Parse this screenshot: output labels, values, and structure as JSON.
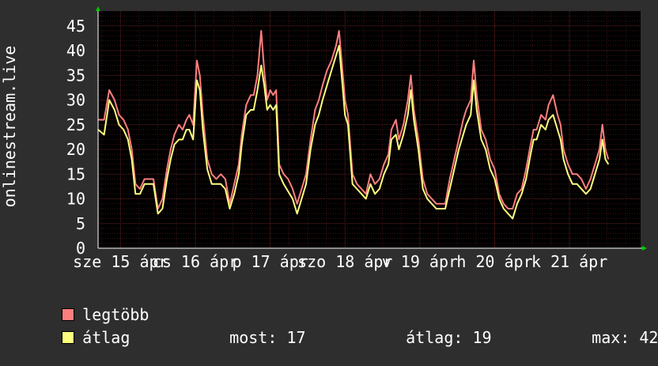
{
  "chart_data": {
    "type": "line",
    "ylabel": "onlinestream.live",
    "ylim": [
      0,
      48
    ],
    "y_ticks": [
      "0",
      "5",
      "10",
      "15",
      "20",
      "25",
      "30",
      "35",
      "40",
      "45"
    ],
    "x_ticks": [
      {
        "label": "sze 15 ápr",
        "x": 0.0
      },
      {
        "label": "cs 16 ápr",
        "x": 1.0
      },
      {
        "label": "p 17 ápr",
        "x": 2.0
      },
      {
        "label": "szo 18 ápr",
        "x": 3.0
      },
      {
        "label": "v 19 ápr",
        "x": 4.0
      },
      {
        "label": "h 20 ápr",
        "x": 5.0
      },
      {
        "label": "k 21 ápr",
        "x": 6.0
      }
    ],
    "grid": true,
    "x_range": [
      -0.3,
      6.95
    ],
    "colors": {
      "max": "#ff7f7f",
      "avg": "#ffff7f",
      "background": "#2e2e2e",
      "plot": "#000000",
      "grid": "#6b2323"
    },
    "series": [
      {
        "name": "legtöbb",
        "color": "#ff7f7f",
        "points": [
          [
            -0.3,
            26
          ],
          [
            -0.22,
            26
          ],
          [
            -0.15,
            32
          ],
          [
            -0.08,
            30
          ],
          [
            -0.02,
            27
          ],
          [
            0.04,
            26
          ],
          [
            0.1,
            24
          ],
          [
            0.15,
            20
          ],
          [
            0.2,
            13
          ],
          [
            0.26,
            12
          ],
          [
            0.32,
            14
          ],
          [
            0.38,
            14
          ],
          [
            0.44,
            14
          ],
          [
            0.5,
            8
          ],
          [
            0.56,
            10
          ],
          [
            0.62,
            16
          ],
          [
            0.67,
            20
          ],
          [
            0.72,
            23
          ],
          [
            0.78,
            25
          ],
          [
            0.83,
            24
          ],
          [
            0.88,
            26
          ],
          [
            0.92,
            27
          ],
          [
            0.97,
            25
          ],
          [
            1.02,
            38
          ],
          [
            1.06,
            35
          ],
          [
            1.1,
            27
          ],
          [
            1.16,
            18
          ],
          [
            1.22,
            15
          ],
          [
            1.28,
            14
          ],
          [
            1.34,
            15
          ],
          [
            1.4,
            14
          ],
          [
            1.46,
            9
          ],
          [
            1.52,
            13
          ],
          [
            1.58,
            17
          ],
          [
            1.62,
            23
          ],
          [
            1.68,
            29
          ],
          [
            1.74,
            31
          ],
          [
            1.78,
            31
          ],
          [
            1.83,
            35
          ],
          [
            1.88,
            44
          ],
          [
            1.92,
            36
          ],
          [
            1.96,
            30
          ],
          [
            2.0,
            32
          ],
          [
            2.04,
            31
          ],
          [
            2.08,
            32
          ],
          [
            2.12,
            17
          ],
          [
            2.18,
            15
          ],
          [
            2.24,
            14
          ],
          [
            2.3,
            12
          ],
          [
            2.36,
            9
          ],
          [
            2.42,
            12
          ],
          [
            2.48,
            15
          ],
          [
            2.54,
            22
          ],
          [
            2.6,
            28
          ],
          [
            2.65,
            30
          ],
          [
            2.7,
            33
          ],
          [
            2.76,
            36
          ],
          [
            2.82,
            38
          ],
          [
            2.88,
            41
          ],
          [
            2.92,
            44
          ],
          [
            2.96,
            37
          ],
          [
            3.0,
            30
          ],
          [
            3.04,
            27
          ],
          [
            3.1,
            15
          ],
          [
            3.16,
            13
          ],
          [
            3.22,
            12
          ],
          [
            3.28,
            11
          ],
          [
            3.34,
            15
          ],
          [
            3.4,
            13
          ],
          [
            3.46,
            14
          ],
          [
            3.52,
            17
          ],
          [
            3.58,
            19
          ],
          [
            3.62,
            24
          ],
          [
            3.68,
            26
          ],
          [
            3.72,
            22
          ],
          [
            3.78,
            25
          ],
          [
            3.84,
            30
          ],
          [
            3.88,
            35
          ],
          [
            3.92,
            28
          ],
          [
            3.98,
            22
          ],
          [
            4.04,
            14
          ],
          [
            4.1,
            11
          ],
          [
            4.16,
            10
          ],
          [
            4.22,
            9
          ],
          [
            4.28,
            9
          ],
          [
            4.34,
            9
          ],
          [
            4.4,
            14
          ],
          [
            4.46,
            18
          ],
          [
            4.52,
            22
          ],
          [
            4.58,
            26
          ],
          [
            4.62,
            28
          ],
          [
            4.68,
            30
          ],
          [
            4.72,
            38
          ],
          [
            4.76,
            31
          ],
          [
            4.82,
            24
          ],
          [
            4.88,
            22
          ],
          [
            4.94,
            18
          ],
          [
            5.0,
            16
          ],
          [
            5.06,
            11
          ],
          [
            5.12,
            9
          ],
          [
            5.18,
            8
          ],
          [
            5.24,
            8
          ],
          [
            5.3,
            11
          ],
          [
            5.36,
            12
          ],
          [
            5.42,
            16
          ],
          [
            5.48,
            21
          ],
          [
            5.52,
            24
          ],
          [
            5.56,
            24
          ],
          [
            5.62,
            27
          ],
          [
            5.68,
            26
          ],
          [
            5.72,
            29
          ],
          [
            5.78,
            31
          ],
          [
            5.84,
            27
          ],
          [
            5.88,
            25
          ],
          [
            5.92,
            20
          ],
          [
            5.98,
            17
          ],
          [
            6.04,
            15
          ],
          [
            6.1,
            15
          ],
          [
            6.16,
            14
          ],
          [
            6.22,
            12
          ],
          [
            6.28,
            14
          ],
          [
            6.34,
            17
          ],
          [
            6.4,
            20
          ],
          [
            6.44,
            25
          ],
          [
            6.48,
            20
          ],
          [
            6.52,
            18
          ]
        ]
      },
      {
        "name": "átlag",
        "color": "#ffff7f",
        "points": [
          [
            -0.3,
            24
          ],
          [
            -0.22,
            23
          ],
          [
            -0.15,
            30
          ],
          [
            -0.08,
            28
          ],
          [
            -0.02,
            25
          ],
          [
            0.04,
            24
          ],
          [
            0.1,
            22
          ],
          [
            0.15,
            18
          ],
          [
            0.2,
            11
          ],
          [
            0.26,
            11
          ],
          [
            0.32,
            13
          ],
          [
            0.38,
            13
          ],
          [
            0.44,
            13
          ],
          [
            0.5,
            7
          ],
          [
            0.56,
            8
          ],
          [
            0.62,
            14
          ],
          [
            0.67,
            18
          ],
          [
            0.72,
            21
          ],
          [
            0.78,
            22
          ],
          [
            0.83,
            22
          ],
          [
            0.88,
            24
          ],
          [
            0.92,
            24
          ],
          [
            0.97,
            22
          ],
          [
            1.02,
            34
          ],
          [
            1.06,
            32
          ],
          [
            1.1,
            24
          ],
          [
            1.16,
            16
          ],
          [
            1.22,
            13
          ],
          [
            1.28,
            13
          ],
          [
            1.34,
            13
          ],
          [
            1.4,
            12
          ],
          [
            1.46,
            8
          ],
          [
            1.52,
            11
          ],
          [
            1.58,
            15
          ],
          [
            1.62,
            21
          ],
          [
            1.68,
            27
          ],
          [
            1.74,
            28
          ],
          [
            1.78,
            28
          ],
          [
            1.83,
            32
          ],
          [
            1.88,
            37
          ],
          [
            1.92,
            33
          ],
          [
            1.96,
            28
          ],
          [
            2.0,
            29
          ],
          [
            2.04,
            28
          ],
          [
            2.08,
            29
          ],
          [
            2.12,
            15
          ],
          [
            2.18,
            13
          ],
          [
            2.22,
            12
          ],
          [
            2.3,
            10
          ],
          [
            2.36,
            7
          ],
          [
            2.42,
            10
          ],
          [
            2.48,
            13
          ],
          [
            2.54,
            20
          ],
          [
            2.6,
            25
          ],
          [
            2.65,
            27
          ],
          [
            2.7,
            30
          ],
          [
            2.76,
            33
          ],
          [
            2.82,
            36
          ],
          [
            2.88,
            39
          ],
          [
            2.92,
            41
          ],
          [
            2.96,
            34
          ],
          [
            3.0,
            27
          ],
          [
            3.04,
            25
          ],
          [
            3.1,
            13
          ],
          [
            3.16,
            12
          ],
          [
            3.22,
            11
          ],
          [
            3.28,
            10
          ],
          [
            3.34,
            13
          ],
          [
            3.4,
            11
          ],
          [
            3.46,
            12
          ],
          [
            3.52,
            15
          ],
          [
            3.58,
            17
          ],
          [
            3.62,
            22
          ],
          [
            3.68,
            23
          ],
          [
            3.72,
            20
          ],
          [
            3.78,
            23
          ],
          [
            3.84,
            27
          ],
          [
            3.88,
            32
          ],
          [
            3.92,
            26
          ],
          [
            3.98,
            20
          ],
          [
            4.04,
            12
          ],
          [
            4.1,
            10
          ],
          [
            4.16,
            9
          ],
          [
            4.22,
            8
          ],
          [
            4.28,
            8
          ],
          [
            4.34,
            8
          ],
          [
            4.4,
            12
          ],
          [
            4.46,
            16
          ],
          [
            4.52,
            20
          ],
          [
            4.58,
            23
          ],
          [
            4.62,
            25
          ],
          [
            4.68,
            27
          ],
          [
            4.72,
            34
          ],
          [
            4.76,
            28
          ],
          [
            4.82,
            22
          ],
          [
            4.88,
            20
          ],
          [
            4.94,
            16
          ],
          [
            5.0,
            14
          ],
          [
            5.06,
            10
          ],
          [
            5.12,
            8
          ],
          [
            5.18,
            7
          ],
          [
            5.24,
            6
          ],
          [
            5.3,
            9
          ],
          [
            5.36,
            11
          ],
          [
            5.42,
            14
          ],
          [
            5.48,
            19
          ],
          [
            5.52,
            22
          ],
          [
            5.56,
            22
          ],
          [
            5.62,
            25
          ],
          [
            5.68,
            24
          ],
          [
            5.72,
            26
          ],
          [
            5.78,
            27
          ],
          [
            5.84,
            24
          ],
          [
            5.88,
            22
          ],
          [
            5.92,
            18
          ],
          [
            5.98,
            15
          ],
          [
            6.04,
            13
          ],
          [
            6.1,
            13
          ],
          [
            6.16,
            12
          ],
          [
            6.22,
            11
          ],
          [
            6.28,
            12
          ],
          [
            6.34,
            15
          ],
          [
            6.4,
            18
          ],
          [
            6.44,
            22
          ],
          [
            6.48,
            18
          ],
          [
            6.52,
            17
          ]
        ]
      }
    ]
  },
  "legend": {
    "max_label": "legtöbb",
    "avg_label": "átlag"
  },
  "stats": {
    "now_label": "most:",
    "now_value": "17",
    "avg_label": "átlag:",
    "avg_value": "19",
    "max_label": "max:",
    "max_value": "42"
  }
}
